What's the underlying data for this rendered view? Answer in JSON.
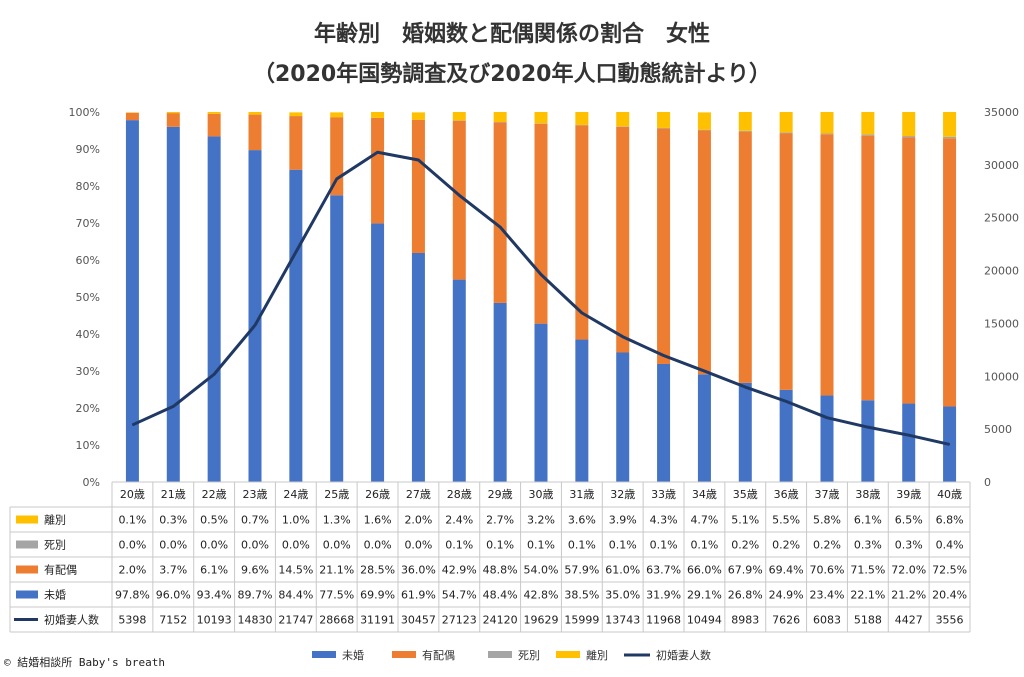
{
  "title_line1": "年齢別　婚姻数と配偶関係の割合　女性",
  "title_line2": "（2020年国勢調査及び2020年人口動態統計より）",
  "copyright": "© 結婚相談所 Baby's breath",
  "colors": {
    "unmarried": "#4472C4",
    "married": "#ED7D31",
    "widowed": "#A5A5A5",
    "divorced": "#FFC000",
    "line": "#1F3864"
  },
  "chart_data": {
    "type": "bar",
    "stacked": true,
    "percent_axis": true,
    "categories": [
      "20歳",
      "21歳",
      "22歳",
      "23歳",
      "24歳",
      "25歳",
      "26歳",
      "27歳",
      "28歳",
      "29歳",
      "30歳",
      "31歳",
      "32歳",
      "33歳",
      "34歳",
      "35歳",
      "36歳",
      "37歳",
      "38歳",
      "39歳",
      "40歳"
    ],
    "left_axis": {
      "ylim": [
        0,
        100
      ],
      "ticks": [
        "0%",
        "10%",
        "20%",
        "30%",
        "40%",
        "50%",
        "60%",
        "70%",
        "80%",
        "90%",
        "100%"
      ]
    },
    "right_axis": {
      "ylim": [
        0,
        35000
      ],
      "ticks": [
        "0",
        "5000",
        "10000",
        "15000",
        "20000",
        "25000",
        "30000",
        "35000"
      ]
    },
    "series": [
      {
        "key": "divorced",
        "name": "離別",
        "kind": "bar",
        "values": [
          0.1,
          0.3,
          0.5,
          0.7,
          1.0,
          1.3,
          1.6,
          2.0,
          2.4,
          2.7,
          3.2,
          3.6,
          3.9,
          4.3,
          4.7,
          5.1,
          5.5,
          5.8,
          6.1,
          6.5,
          6.8
        ],
        "labels": [
          "0.1%",
          "0.3%",
          "0.5%",
          "0.7%",
          "1.0%",
          "1.3%",
          "1.6%",
          "2.0%",
          "2.4%",
          "2.7%",
          "3.2%",
          "3.6%",
          "3.9%",
          "4.3%",
          "4.7%",
          "5.1%",
          "5.5%",
          "5.8%",
          "6.1%",
          "6.5%",
          "6.8%"
        ]
      },
      {
        "key": "widowed",
        "name": "死別",
        "kind": "bar",
        "values": [
          0.0,
          0.0,
          0.0,
          0.0,
          0.0,
          0.0,
          0.0,
          0.0,
          0.1,
          0.1,
          0.1,
          0.1,
          0.1,
          0.1,
          0.1,
          0.2,
          0.2,
          0.2,
          0.3,
          0.3,
          0.4
        ],
        "labels": [
          "0.0%",
          "0.0%",
          "0.0%",
          "0.0%",
          "0.0%",
          "0.0%",
          "0.0%",
          "0.0%",
          "0.1%",
          "0.1%",
          "0.1%",
          "0.1%",
          "0.1%",
          "0.1%",
          "0.1%",
          "0.2%",
          "0.2%",
          "0.2%",
          "0.3%",
          "0.3%",
          "0.4%"
        ]
      },
      {
        "key": "married",
        "name": "有配偶",
        "kind": "bar",
        "values": [
          2.0,
          3.7,
          6.1,
          9.6,
          14.5,
          21.1,
          28.5,
          36.0,
          42.9,
          48.8,
          54.0,
          57.9,
          61.0,
          63.7,
          66.0,
          67.9,
          69.4,
          70.6,
          71.5,
          72.0,
          72.5
        ],
        "labels": [
          "2.0%",
          "3.7%",
          "6.1%",
          "9.6%",
          "14.5%",
          "21.1%",
          "28.5%",
          "36.0%",
          "42.9%",
          "48.8%",
          "54.0%",
          "57.9%",
          "61.0%",
          "63.7%",
          "66.0%",
          "67.9%",
          "69.4%",
          "70.6%",
          "71.5%",
          "72.0%",
          "72.5%"
        ]
      },
      {
        "key": "unmarried",
        "name": "未婚",
        "kind": "bar",
        "values": [
          97.8,
          96.0,
          93.4,
          89.7,
          84.4,
          77.5,
          69.9,
          61.9,
          54.7,
          48.4,
          42.8,
          38.5,
          35.0,
          31.9,
          29.1,
          26.8,
          24.9,
          23.4,
          22.1,
          21.2,
          20.4
        ],
        "labels": [
          "97.8%",
          "96.0%",
          "93.4%",
          "89.7%",
          "84.4%",
          "77.5%",
          "69.9%",
          "61.9%",
          "54.7%",
          "48.4%",
          "42.8%",
          "38.5%",
          "35.0%",
          "31.9%",
          "29.1%",
          "26.8%",
          "24.9%",
          "23.4%",
          "22.1%",
          "21.2%",
          "20.4%"
        ]
      },
      {
        "key": "line",
        "name": "初婚妻人数",
        "kind": "line",
        "axis": "right",
        "values": [
          5398,
          7152,
          10193,
          14830,
          21747,
          28668,
          31191,
          30457,
          27123,
          24120,
          19629,
          15999,
          13743,
          11968,
          10494,
          8983,
          7626,
          6083,
          5188,
          4427,
          3556
        ],
        "labels": [
          "5398",
          "7152",
          "10193",
          "14830",
          "21747",
          "28668",
          "31191",
          "30457",
          "27123",
          "24120",
          "19629",
          "15999",
          "13743",
          "11968",
          "10494",
          "8983",
          "7626",
          "6083",
          "5188",
          "4427",
          "3556"
        ]
      }
    ],
    "legend": {
      "placement": "bottom",
      "order": [
        "unmarried",
        "married",
        "widowed",
        "divorced",
        "line"
      ]
    },
    "data_table": true
  }
}
